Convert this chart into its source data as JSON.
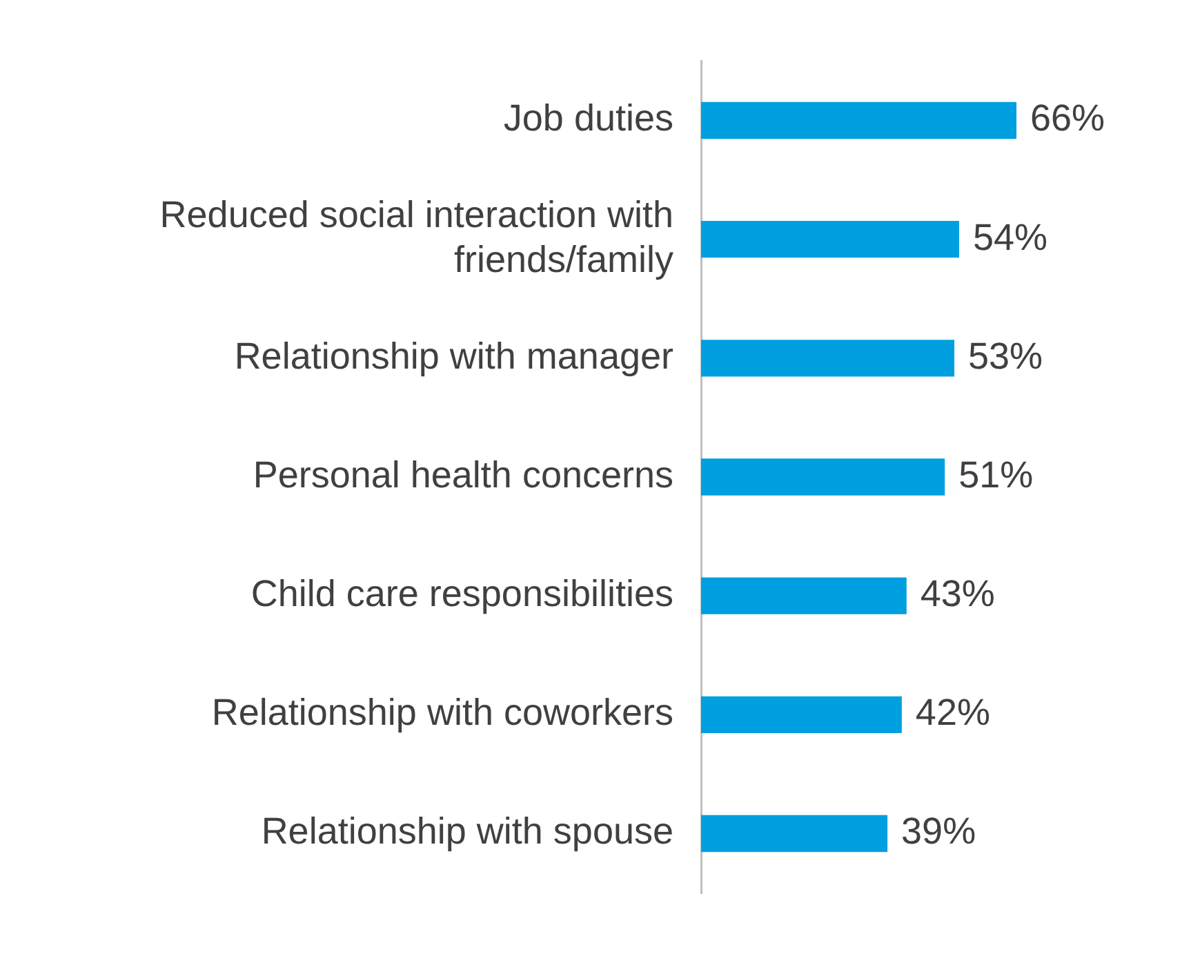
{
  "chart_data": {
    "type": "bar",
    "orientation": "horizontal",
    "categories": [
      "Job duties",
      "Reduced social interaction with friends/family",
      "Relationship with manager",
      "Personal health concerns",
      "Child care responsibilities",
      "Relationship with coworkers",
      "Relationship with spouse"
    ],
    "values": [
      66,
      54,
      53,
      51,
      43,
      42,
      39
    ],
    "value_labels": [
      "66%",
      "54%",
      "53%",
      "51%",
      "43%",
      "42%",
      "39%"
    ],
    "color": "#009fdf",
    "legend": false,
    "tick_labels": "y"
  }
}
